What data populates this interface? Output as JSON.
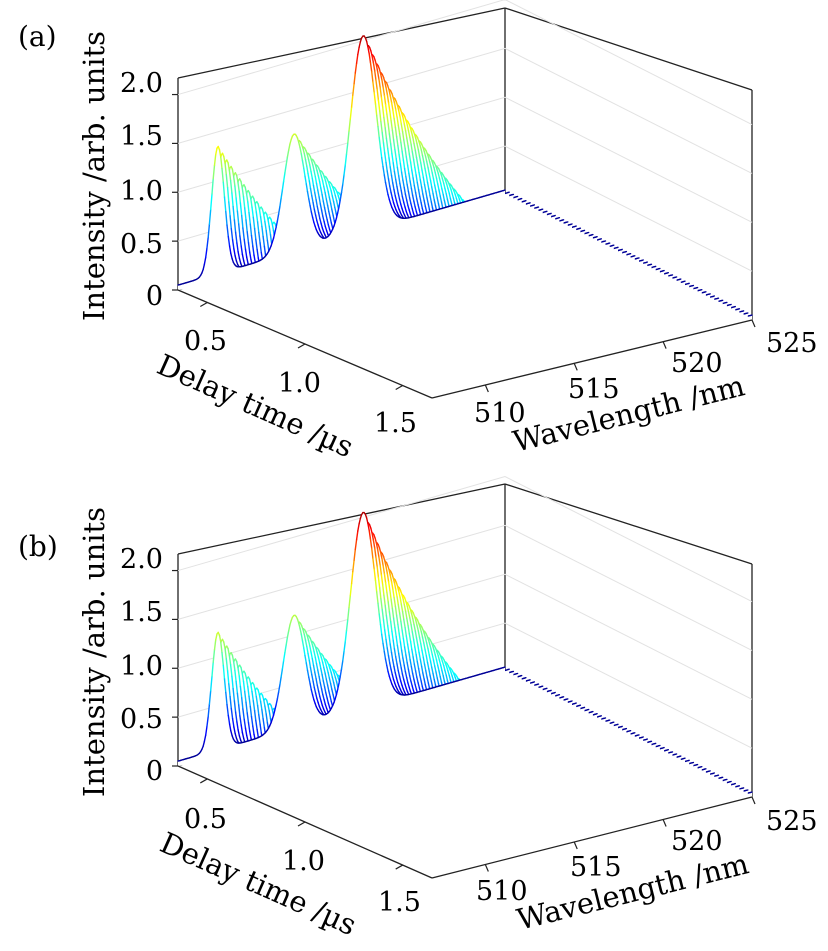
{
  "chart_data": [
    {
      "type": "waterfall-3d",
      "panel_label": "(a)",
      "zlabel": "Intensity /arb. units",
      "ylabel": "Delay time /µs",
      "xlabel": "Wavelength /nm",
      "z_ticks": [
        "0",
        "0.5",
        "1.0",
        "1.5",
        "2.0"
      ],
      "y_ticks": [
        "0.5",
        "1.0",
        "1.5"
      ],
      "x_ticks": [
        "510",
        "515",
        "520",
        "525"
      ],
      "xlim": [
        507,
        525
      ],
      "ylim": [
        0.35,
        1.65
      ],
      "zlim": [
        0,
        2.2
      ],
      "n_traces": 60,
      "decay_time_us": 0.55,
      "peaks": [
        {
          "center_nm": 509.2,
          "amplitude": 1.3,
          "width_nm": 0.35
        },
        {
          "center_nm": 513.4,
          "amplitude": 1.2,
          "width_nm": 0.6
        },
        {
          "center_nm": 517.2,
          "amplitude": 2.0,
          "width_nm": 0.7
        }
      ]
    },
    {
      "type": "waterfall-3d",
      "panel_label": "(b)",
      "zlabel": "Intensity /arb. units",
      "ylabel": "Delay time /µs",
      "xlabel": "Wavelength /nm",
      "z_ticks": [
        "0",
        "0.5",
        "1.0",
        "1.5",
        "2.0"
      ],
      "y_ticks": [
        "0.5",
        "1.0",
        "1.5"
      ],
      "x_ticks": [
        "510",
        "515",
        "520",
        "525"
      ],
      "xlim": [
        507,
        525
      ],
      "ylim": [
        0.35,
        1.65
      ],
      "zlim": [
        0,
        2.2
      ],
      "n_traces": 60,
      "decay_time_us": 0.5,
      "peaks": [
        {
          "center_nm": 509.2,
          "amplitude": 1.2,
          "width_nm": 0.35
        },
        {
          "center_nm": 513.4,
          "amplitude": 1.15,
          "width_nm": 0.6
        },
        {
          "center_nm": 517.2,
          "amplitude": 2.0,
          "width_nm": 0.7
        }
      ]
    }
  ]
}
